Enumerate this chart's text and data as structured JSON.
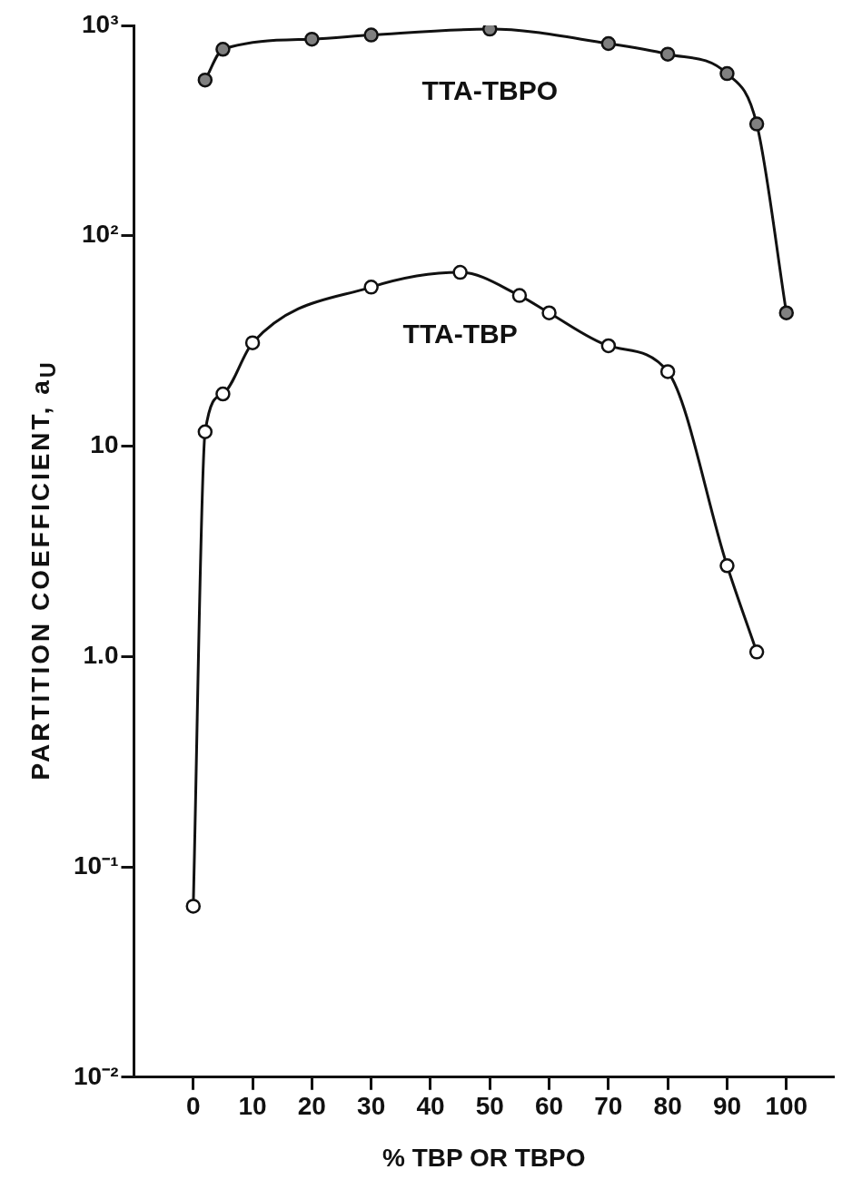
{
  "chart_data": {
    "type": "line",
    "xlabel": "% TBP OR TBPO",
    "ylabel": "PARTITION COEFFICIENT, a$_{U}$",
    "series": [
      {
        "name": "TTA-TBPO",
        "color": "#808080",
        "x": [
          2,
          5,
          20,
          30,
          50,
          70,
          80,
          90,
          95,
          100
        ],
        "values": [
          550,
          770,
          860,
          900,
          960,
          820,
          730,
          590,
          340,
          43
        ]
      },
      {
        "name": "TTA-TBP",
        "color": "#ffffff",
        "x": [
          0,
          2,
          5,
          10,
          30,
          45,
          55,
          60,
          70,
          80,
          90,
          95
        ],
        "values": [
          0.065,
          11.7,
          17.7,
          31,
          57,
          67,
          52,
          43,
          30,
          22.6,
          2.7,
          1.05
        ]
      }
    ],
    "log": "y",
    "xlim": [
      -10,
      108
    ],
    "ylim": [
      0.01,
      1000
    ],
    "xticks": [
      0,
      10,
      20,
      30,
      40,
      50,
      60,
      70,
      80,
      90,
      100
    ],
    "yticks": [
      {
        "value": 0.01,
        "label": "10⁻²"
      },
      {
        "value": 0.1,
        "label": "10⁻¹"
      },
      {
        "value": 1,
        "label": "1.0"
      },
      10,
      {
        "value": 100,
        "label": "10²"
      },
      {
        "value": 1000,
        "label": "10³"
      }
    ],
    "grid": false,
    "legend": false,
    "marker": "circle",
    "line_style": "solid"
  }
}
